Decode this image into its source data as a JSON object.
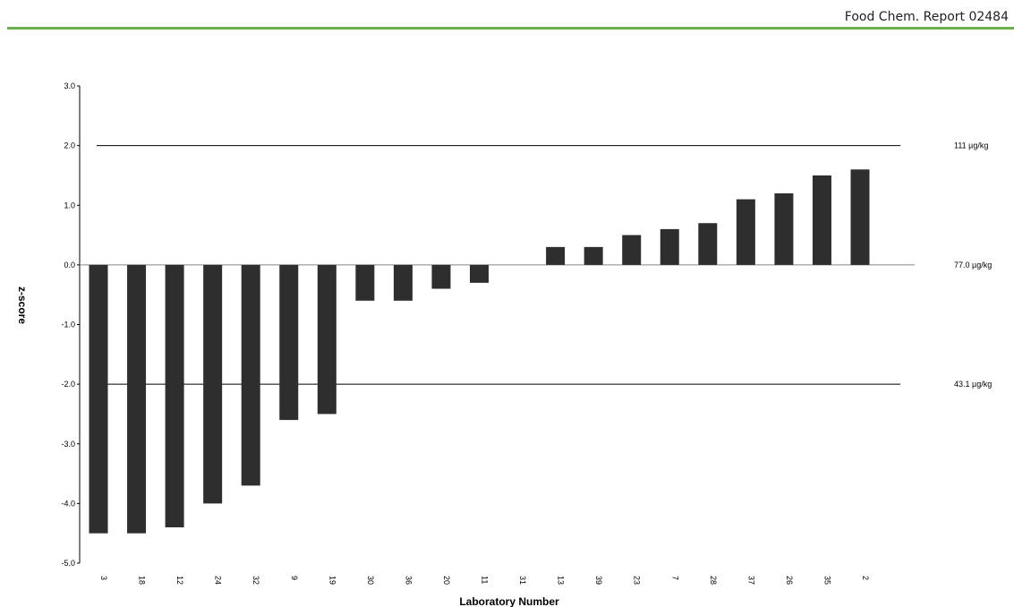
{
  "header": {
    "report_title": "Food Chem. Report 02484",
    "rule_color": "#6ab04c"
  },
  "chart_data": {
    "type": "bar",
    "title": "",
    "xlabel": "Laboratory Number",
    "ylabel": "z-score",
    "ylim": [
      -5.0,
      3.0
    ],
    "y_ticks": [
      "3.0",
      "2.0",
      "1.0",
      "0.0",
      "-1.0",
      "-2.0",
      "-3.0",
      "-4.0",
      "-5.0"
    ],
    "grid": false,
    "bar_color": "#2e2e2e",
    "categories": [
      "3",
      "18",
      "12",
      "24",
      "32",
      "9",
      "19",
      "30",
      "36",
      "20",
      "11",
      "31",
      "13",
      "39",
      "23",
      "7",
      "28",
      "37",
      "26",
      "35",
      "2"
    ],
    "values": [
      -4.5,
      -4.5,
      -4.4,
      -4.0,
      -3.7,
      -2.6,
      -2.5,
      -0.6,
      -0.6,
      -0.4,
      -0.3,
      0.0,
      0.3,
      0.3,
      0.5,
      0.6,
      0.7,
      1.1,
      1.2,
      1.5,
      1.6
    ],
    "reference_lines": [
      {
        "y": 2.0,
        "label": "111 µg/kg"
      },
      {
        "y": 0.0,
        "label": "77.0 µg/kg"
      },
      {
        "y": -2.0,
        "label": "43.1 µg/kg"
      }
    ]
  }
}
